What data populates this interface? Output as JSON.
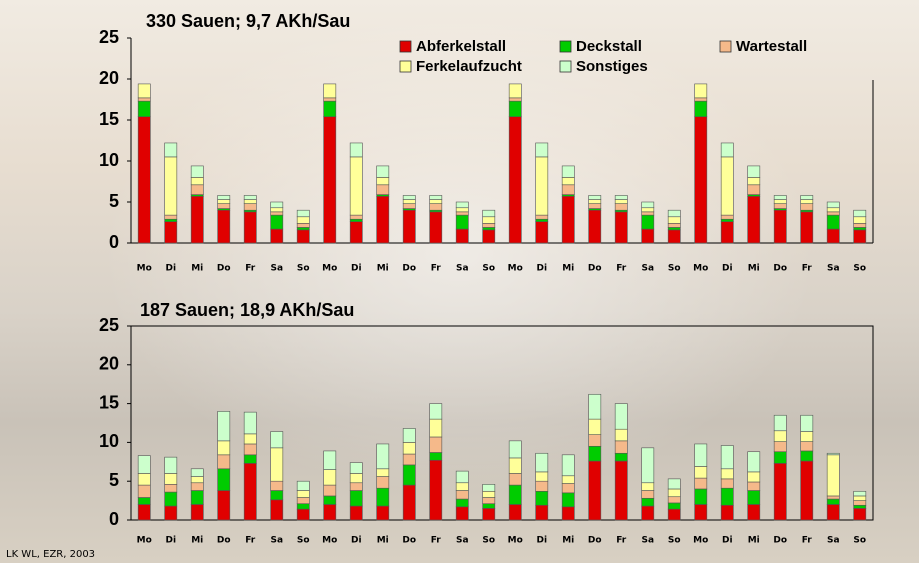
{
  "chart_data": [
    {
      "type": "bar",
      "stacked": true,
      "title": "330 Sauen; 9,7 AKh/Sau",
      "legend": "top-right",
      "categories": [
        "Mo",
        "Di",
        "Mi",
        "Do",
        "Fr",
        "Sa",
        "So",
        "Mo",
        "Di",
        "Mi",
        "Do",
        "Fr",
        "Sa",
        "So",
        "Mo",
        "Di",
        "Mi",
        "Do",
        "Fr",
        "Sa",
        "So",
        "Mo",
        "Di",
        "Mi",
        "Do",
        "Fr",
        "Sa",
        "So"
      ],
      "ylim": [
        0,
        25
      ],
      "yticks": [
        0,
        5,
        10,
        15,
        20,
        25
      ],
      "series": [
        {
          "name": "Abferkelstall",
          "color": "#e00000",
          "values": [
            15.4,
            2.6,
            5.7,
            4.0,
            3.8,
            1.7,
            1.6,
            15.4,
            2.6,
            5.7,
            4.0,
            3.8,
            1.7,
            1.6,
            15.4,
            2.6,
            5.7,
            4.0,
            3.8,
            1.7,
            1.6,
            15.4,
            2.6,
            5.7,
            4.0,
            3.8,
            1.7,
            1.6
          ]
        },
        {
          "name": "Deckstall",
          "color": "#00cc00",
          "values": [
            1.9,
            0.3,
            0.2,
            0.2,
            0.2,
            1.7,
            0.3,
            1.9,
            0.3,
            0.2,
            0.2,
            0.2,
            1.7,
            0.3,
            1.9,
            0.3,
            0.2,
            0.2,
            0.2,
            1.7,
            0.3,
            1.9,
            0.3,
            0.2,
            0.2,
            0.2,
            1.7,
            0.3
          ]
        },
        {
          "name": "Wartestall",
          "color": "#f5b98a",
          "values": [
            0.4,
            0.5,
            1.2,
            0.6,
            0.8,
            0.4,
            0.5,
            0.4,
            0.5,
            1.2,
            0.6,
            0.8,
            0.4,
            0.5,
            0.4,
            0.5,
            1.2,
            0.6,
            0.8,
            0.4,
            0.5,
            0.4,
            0.5,
            1.2,
            0.6,
            0.8,
            0.4,
            0.5
          ]
        },
        {
          "name": "Ferkelaufzucht",
          "color": "#ffff99",
          "values": [
            1.7,
            7.1,
            0.9,
            0.5,
            0.5,
            0.5,
            0.8,
            1.7,
            7.1,
            0.9,
            0.5,
            0.5,
            0.5,
            0.8,
            1.7,
            7.1,
            0.9,
            0.5,
            0.5,
            0.5,
            0.8,
            1.7,
            7.1,
            0.9,
            0.5,
            0.5,
            0.5,
            0.8
          ]
        },
        {
          "name": "Sonstiges",
          "color": "#ccffcc",
          "values": [
            0,
            1.7,
            1.4,
            0.5,
            0.5,
            0.7,
            0.8,
            0,
            1.7,
            1.4,
            0.5,
            0.5,
            0.7,
            0.8,
            0,
            1.7,
            1.4,
            0.5,
            0.5,
            0.7,
            0.8,
            0,
            1.7,
            1.4,
            0.5,
            0.5,
            0.7,
            0.8
          ]
        }
      ]
    },
    {
      "type": "bar",
      "stacked": true,
      "title": "187 Sauen; 18,9 AKh/Sau",
      "categories": [
        "Mo",
        "Di",
        "Mi",
        "Do",
        "Fr",
        "Sa",
        "So",
        "Mo",
        "Di",
        "Mi",
        "Do",
        "Fr",
        "Sa",
        "So",
        "Mo",
        "Di",
        "Mi",
        "Do",
        "Fr",
        "Sa",
        "So",
        "Mo",
        "Di",
        "Mi",
        "Do",
        "Fr",
        "Sa",
        "So"
      ],
      "ylim": [
        0,
        25
      ],
      "yticks": [
        0,
        5,
        10,
        15,
        20,
        25
      ],
      "series": [
        {
          "name": "Abferkelstall",
          "color": "#e00000",
          "values": [
            2.0,
            1.8,
            2.0,
            3.8,
            7.3,
            2.6,
            1.4,
            2.0,
            1.8,
            1.8,
            4.5,
            7.7,
            1.7,
            1.5,
            2.0,
            1.9,
            1.7,
            7.6,
            7.6,
            1.8,
            1.4,
            2.0,
            1.9,
            2.0,
            7.3,
            7.6,
            2.0,
            1.5
          ]
        },
        {
          "name": "Deckstall",
          "color": "#00cc00",
          "values": [
            0.9,
            1.8,
            1.8,
            2.8,
            1.1,
            1.2,
            0.7,
            1.1,
            2.0,
            2.3,
            2.6,
            1.0,
            1.0,
            0.6,
            2.5,
            1.8,
            1.8,
            1.9,
            1.0,
            1.0,
            0.8,
            2.0,
            2.2,
            1.8,
            1.5,
            1.3,
            0.7,
            0.4
          ]
        },
        {
          "name": "Wartestall",
          "color": "#f5b98a",
          "values": [
            1.6,
            1.0,
            1.0,
            1.8,
            1.4,
            1.2,
            0.8,
            1.4,
            1.0,
            1.5,
            1.4,
            2.0,
            1.1,
            0.8,
            1.5,
            1.3,
            1.2,
            1.5,
            1.6,
            1.0,
            0.8,
            1.4,
            1.2,
            1.1,
            1.3,
            1.2,
            0.4,
            0.6
          ]
        },
        {
          "name": "Ferkelaufzucht",
          "color": "#ffff99",
          "values": [
            1.5,
            1.4,
            0.8,
            1.8,
            1.3,
            4.3,
            0.9,
            2.0,
            1.2,
            1.0,
            1.5,
            2.3,
            1.0,
            0.8,
            2.0,
            1.2,
            1.0,
            2.0,
            1.5,
            1.0,
            1.0,
            1.5,
            1.3,
            1.3,
            1.4,
            1.3,
            5.3,
            0.6
          ]
        },
        {
          "name": "Sonstiges",
          "color": "#ccffcc",
          "values": [
            2.3,
            2.1,
            1.0,
            3.8,
            2.8,
            2.1,
            1.2,
            2.4,
            1.4,
            3.2,
            1.8,
            2.0,
            1.5,
            0.9,
            2.2,
            2.4,
            2.7,
            3.2,
            3.3,
            4.5,
            1.3,
            2.9,
            3.0,
            2.6,
            2.0,
            2.1,
            0.2,
            0.6
          ]
        }
      ]
    }
  ],
  "source": "LK WL, EZR, 2003"
}
